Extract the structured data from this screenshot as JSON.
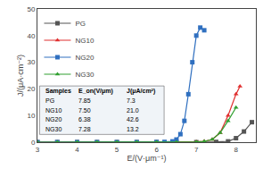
{
  "chart_data": {
    "type": "line",
    "xlabel": "E/(V·μm⁻¹)",
    "ylabel": "J/(μA·cm⁻²)",
    "xlim": [
      3,
      8.5
    ],
    "ylim": [
      0,
      50
    ],
    "xticks": [
      3,
      4,
      5,
      6,
      7,
      8
    ],
    "yticks": [
      0,
      10,
      20,
      30,
      40,
      50
    ],
    "grid": false,
    "legend": "upper left",
    "series": [
      {
        "name": "PG",
        "color": "#555555",
        "marker": "square",
        "x": [
          3,
          3.5,
          4,
          4.5,
          5,
          5.5,
          6,
          6.5,
          7,
          7.5,
          7.8,
          8.0,
          8.2,
          8.4
        ],
        "values": [
          0,
          0,
          0,
          0,
          0,
          0,
          0,
          0,
          0,
          0.1,
          0.3,
          1.5,
          4.0,
          7.5
        ]
      },
      {
        "name": "NG10",
        "color": "#e03030",
        "marker": "triangle-up",
        "x": [
          3,
          3.5,
          4,
          4.5,
          5,
          5.5,
          6,
          6.5,
          7,
          7.2,
          7.4,
          7.6,
          7.8,
          8.0,
          8.1
        ],
        "values": [
          0,
          0,
          0,
          0,
          0,
          0,
          0,
          0,
          0.1,
          0.3,
          1.0,
          3.5,
          10,
          18,
          21
        ]
      },
      {
        "name": "NG20",
        "color": "#3070c0",
        "marker": "square",
        "x": [
          3,
          3.5,
          4,
          4.5,
          5,
          5.5,
          6,
          6.2,
          6.4,
          6.5,
          6.6,
          6.7,
          6.8,
          6.9,
          7.0,
          7.1,
          7.2
        ],
        "values": [
          0,
          0,
          0,
          0,
          0,
          0,
          0.05,
          0.1,
          0.3,
          1.0,
          3,
          8,
          18,
          30,
          40,
          43,
          42
        ]
      },
      {
        "name": "NG30",
        "color": "#30a030",
        "marker": "triangle-up",
        "x": [
          3,
          3.5,
          4,
          4.5,
          5,
          5.5,
          6,
          6.5,
          7,
          7.2,
          7.4,
          7.6,
          7.8,
          8.0
        ],
        "values": [
          0,
          0,
          0,
          0,
          0,
          0,
          0,
          0,
          0.1,
          0.3,
          1.0,
          3.5,
          8,
          13
        ]
      }
    ],
    "table": {
      "color": "#f0f4f8",
      "headers": [
        "Samples",
        "E_on(V/μm)",
        "J(μA/cm²)"
      ],
      "rows": [
        [
          "PG",
          "7.85",
          "7.3"
        ],
        [
          "NG10",
          "7.50",
          "21.0"
        ],
        [
          "NG20",
          "6.38",
          "42.6"
        ],
        [
          "NG30",
          "7.28",
          "13.2"
        ]
      ]
    }
  }
}
